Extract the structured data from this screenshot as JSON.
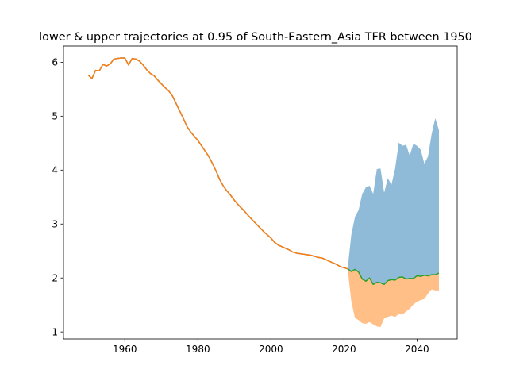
{
  "chart_data": {
    "type": "area",
    "title": "lower & upper trajectories at 0.95 of South-Eastern_Asia TFR between 1950",
    "xlabel": "",
    "ylabel": "",
    "xlim": [
      1943.2,
      2051.0
    ],
    "ylim": [
      0.87,
      6.3
    ],
    "xticks": [
      1960,
      1980,
      2000,
      2020,
      2040
    ],
    "yticks": [
      1,
      2,
      3,
      4,
      5,
      6
    ],
    "grid": false,
    "colors": {
      "upper_fill": "#1f77b4",
      "lower_fill": "#ff7f0e",
      "historical_line": "#ff7f0e",
      "historical_line_under": "#1f77b4",
      "median_line": "#2ca02c"
    },
    "historical": {
      "x": [
        1950,
        1951,
        1952,
        1953,
        1954,
        1955,
        1956,
        1957,
        1958,
        1959,
        1960,
        1961,
        1962,
        1963,
        1964,
        1965,
        1966,
        1967,
        1968,
        1969,
        1970,
        1971,
        1972,
        1973,
        1974,
        1975,
        1976,
        1977,
        1978,
        1979,
        1980,
        1981,
        1982,
        1983,
        1984,
        1985,
        1986,
        1987,
        1988,
        1989,
        1990,
        1991,
        1992,
        1993,
        1994,
        1995,
        1996,
        1997,
        1998,
        1999,
        2000,
        2001,
        2002,
        2003,
        2004,
        2005,
        2006,
        2007,
        2008,
        2009,
        2010,
        2011,
        2012,
        2013,
        2014,
        2015,
        2016,
        2017,
        2018,
        2019,
        2020,
        2021
      ],
      "y": [
        5.76,
        5.7,
        5.85,
        5.84,
        5.96,
        5.93,
        5.97,
        6.06,
        6.07,
        6.08,
        6.08,
        5.95,
        6.07,
        6.06,
        6.02,
        5.95,
        5.86,
        5.79,
        5.75,
        5.67,
        5.6,
        5.53,
        5.47,
        5.38,
        5.24,
        5.1,
        4.96,
        4.81,
        4.71,
        4.63,
        4.55,
        4.45,
        4.35,
        4.25,
        4.12,
        3.98,
        3.82,
        3.7,
        3.61,
        3.53,
        3.44,
        3.36,
        3.29,
        3.22,
        3.14,
        3.07,
        3.0,
        2.93,
        2.86,
        2.8,
        2.74,
        2.66,
        2.61,
        2.58,
        2.55,
        2.52,
        2.48,
        2.46,
        2.45,
        2.44,
        2.43,
        2.42,
        2.4,
        2.38,
        2.37,
        2.34,
        2.31,
        2.28,
        2.25,
        2.21,
        2.19,
        2.17
      ]
    },
    "projection": {
      "x": [
        2021,
        2022,
        2023,
        2024,
        2025,
        2026,
        2027,
        2028,
        2029,
        2030,
        2031,
        2032,
        2033,
        2034,
        2035,
        2036,
        2037,
        2038,
        2039,
        2040,
        2041,
        2042,
        2043,
        2044,
        2045,
        2046
      ],
      "upper": [
        2.17,
        2.8,
        3.13,
        3.26,
        3.56,
        3.68,
        3.71,
        3.56,
        4.02,
        4.03,
        3.58,
        3.85,
        3.73,
        4.03,
        4.51,
        4.45,
        4.47,
        4.27,
        4.49,
        4.45,
        4.38,
        4.12,
        4.25,
        4.67,
        4.96,
        4.74
      ],
      "lower": [
        2.17,
        1.57,
        1.26,
        1.22,
        1.16,
        1.15,
        1.18,
        1.14,
        1.1,
        1.09,
        1.25,
        1.28,
        1.3,
        1.28,
        1.33,
        1.32,
        1.38,
        1.43,
        1.51,
        1.56,
        1.59,
        1.61,
        1.71,
        1.79,
        1.77,
        1.77
      ],
      "median": [
        2.17,
        2.12,
        2.16,
        2.11,
        1.98,
        1.94,
        2.0,
        1.88,
        1.92,
        1.91,
        1.88,
        1.95,
        1.97,
        1.96,
        2.01,
        2.02,
        1.98,
        1.99,
        1.99,
        2.04,
        2.03,
        2.05,
        2.04,
        2.06,
        2.06,
        2.09
      ]
    }
  }
}
